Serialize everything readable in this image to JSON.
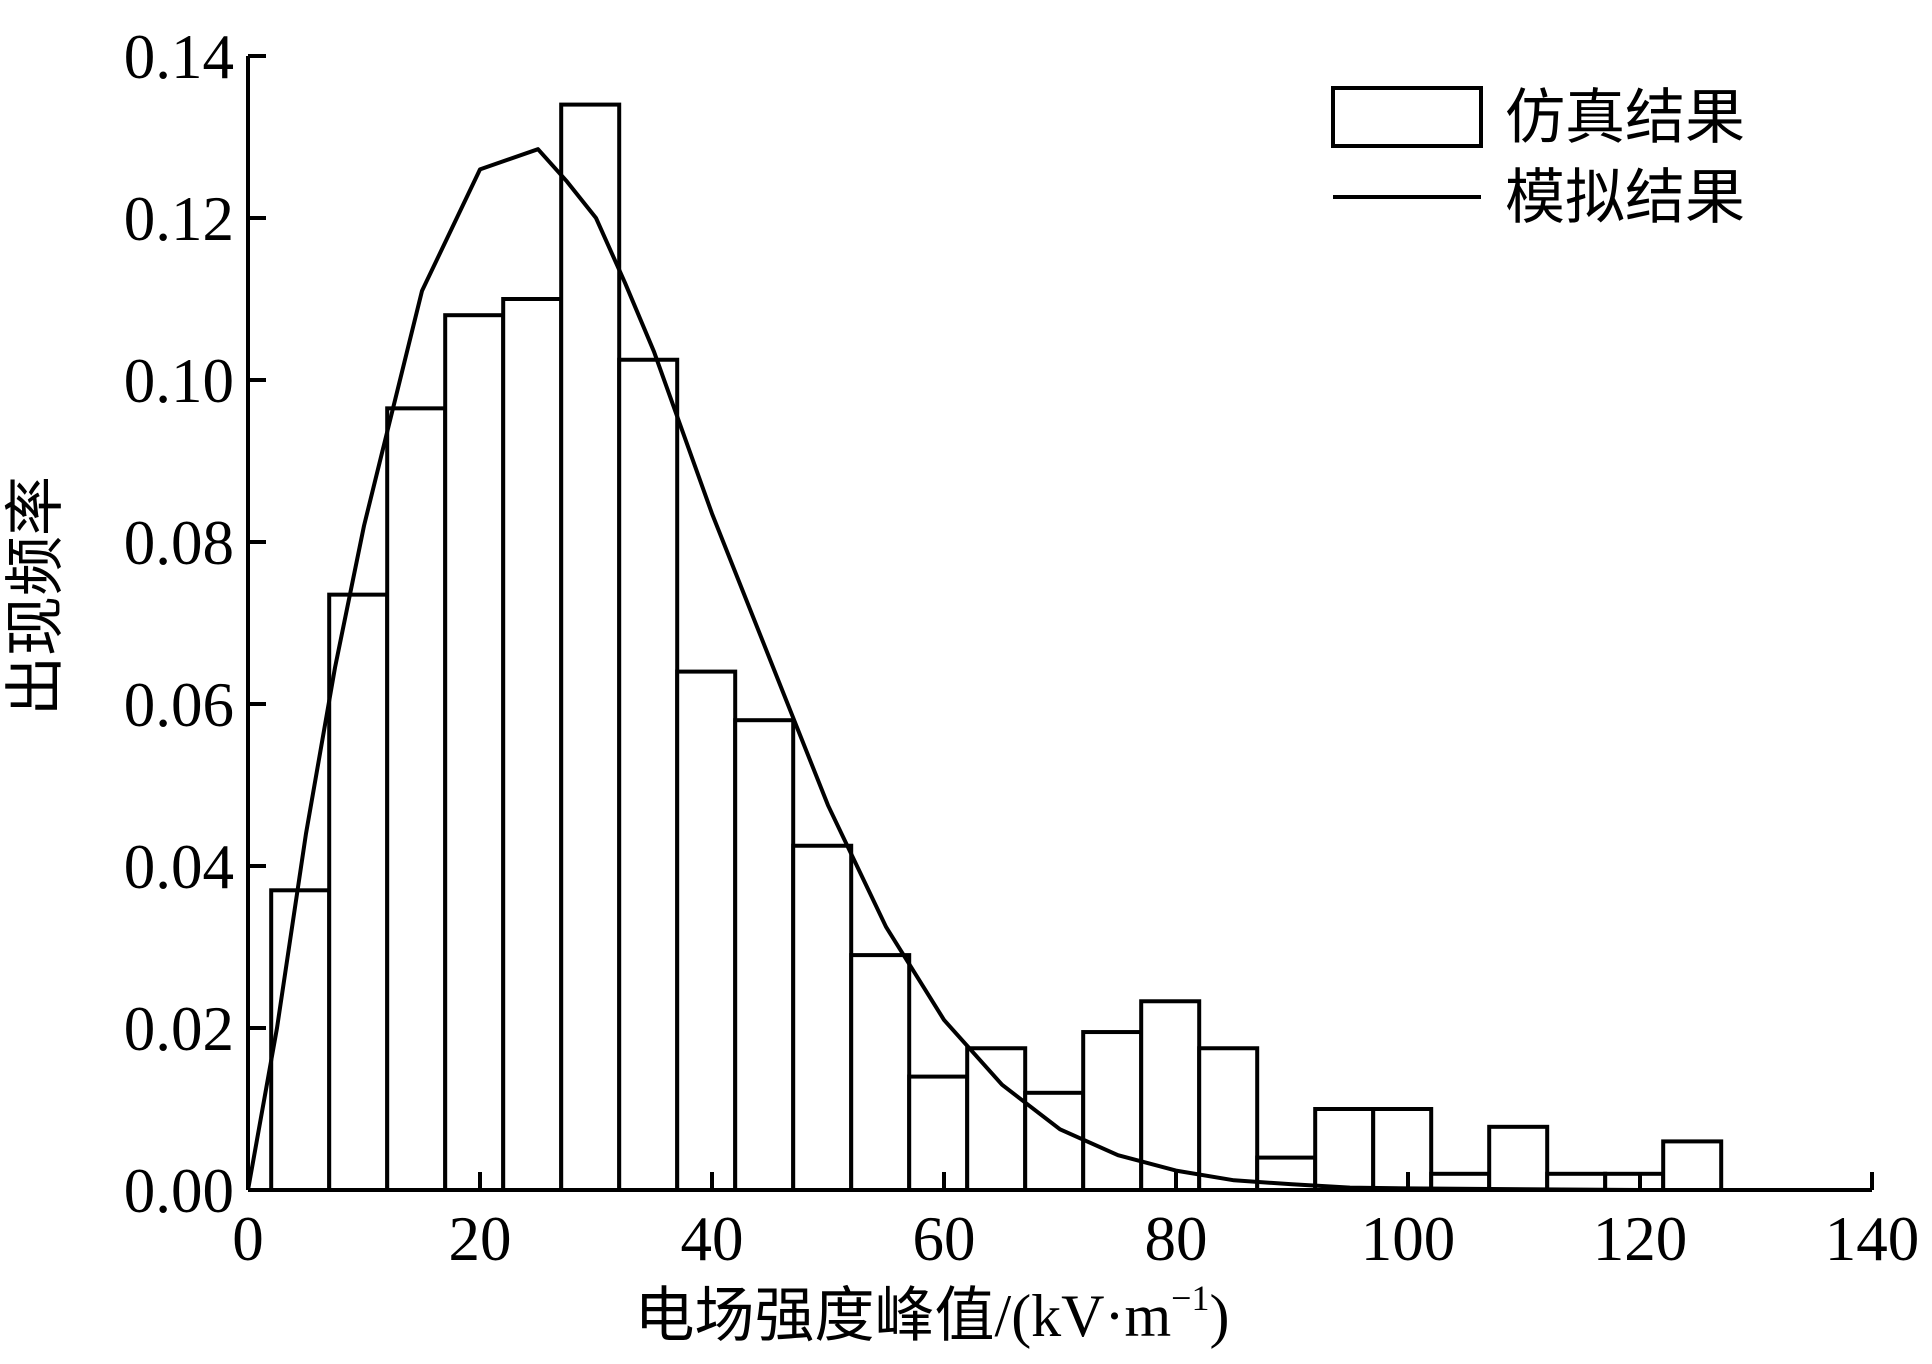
{
  "chart_data": {
    "type": "bar",
    "xlabel": "电场强度峰值/(kV·m",
    "xlabel_sup": "−1",
    "xlabel_close": ")",
    "ylabel": "出现频率",
    "xlim": [
      0,
      140
    ],
    "ylim": [
      0,
      0.14
    ],
    "x_ticks": [
      0,
      20,
      40,
      60,
      80,
      100,
      120,
      140
    ],
    "x_tick_labels": [
      "0",
      "20",
      "40",
      "60",
      "80",
      "100",
      "120",
      "140"
    ],
    "y_ticks": [
      0,
      0.02,
      0.04,
      0.06,
      0.08,
      0.1,
      0.12,
      0.14
    ],
    "y_tick_labels": [
      "0.00",
      "0.02",
      "0.04",
      "0.06",
      "0.08",
      "0.10",
      "0.12",
      "0.14"
    ],
    "grid": false,
    "legend_position": "top-right",
    "series": [
      {
        "name": "仿真结果",
        "type": "histogram",
        "bin_edges": [
          2,
          7,
          12,
          17,
          22,
          27,
          32,
          37,
          42,
          47,
          52,
          57,
          62,
          67,
          72,
          77,
          82,
          87,
          92,
          97,
          102,
          107,
          112,
          117,
          122,
          127
        ],
        "values": [
          0.037,
          0.0735,
          0.0965,
          0.108,
          0.11,
          0.134,
          0.1025,
          0.064,
          0.058,
          0.0425,
          0.029,
          0.014,
          0.0175,
          0.012,
          0.0195,
          0.0233,
          0.0175,
          0.004,
          0.01,
          0.01,
          0.002,
          0.0078,
          0.002,
          0.002,
          0.006
        ]
      },
      {
        "name": "模拟结果",
        "type": "line",
        "x": [
          0,
          2.5,
          5,
          7.5,
          10,
          15,
          20,
          25,
          27.5,
          30,
          32.5,
          35,
          37.5,
          40,
          45,
          50,
          55,
          60,
          65,
          70,
          75,
          80,
          85,
          90,
          95,
          100,
          110,
          120,
          130
        ],
        "y": [
          0,
          0.02,
          0.044,
          0.0645,
          0.082,
          0.111,
          0.126,
          0.1285,
          0.1245,
          0.12,
          0.112,
          0.1035,
          0.0935,
          0.0835,
          0.0655,
          0.0475,
          0.0325,
          0.021,
          0.013,
          0.0075,
          0.0043,
          0.0024,
          0.0012,
          0.0007,
          0.0003,
          0.0002,
          0.0001,
          0.0,
          0.0
        ]
      }
    ]
  }
}
